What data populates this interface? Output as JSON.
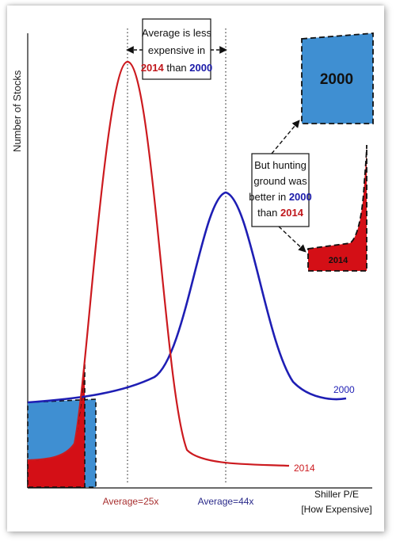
{
  "colors": {
    "series_2014": "#cc1a1f",
    "series_2000": "#1e1eb4",
    "fill_2014": "#d40f16",
    "fill_2000": "#3f8fd2",
    "avg_2014_text": "#a83030",
    "avg_2000_text": "#2a2a8a"
  },
  "chart_data": {
    "type": "line",
    "title": "",
    "ylabel": "Number of Stocks",
    "xlabel_line1": "Shiller P/E",
    "xlabel_line2": "[How Expensive]",
    "series": [
      {
        "name": "2014",
        "description": "red distribution peaking near Average=25x"
      },
      {
        "name": "2000",
        "description": "blue distribution peaking near Average=44x"
      }
    ],
    "averages": [
      {
        "label": "Average=25x",
        "value": 25,
        "series": "2014"
      },
      {
        "label": "Average=44x",
        "value": 44,
        "series": "2000"
      }
    ],
    "annotations": {
      "top": {
        "line1": "Average is less",
        "line2": "expensive in",
        "year_a": "2014",
        "than": " than ",
        "year_b": "2000"
      },
      "right": {
        "line1": "But hunting",
        "line2": "ground was",
        "line3_prefix": "better in ",
        "line3_year": "2000",
        "line4_prefix": "than ",
        "line4_year": "2014"
      }
    },
    "zoom_labels": {
      "blue": "2000",
      "red": "2014"
    },
    "grid": false,
    "legend": "inline labels at right end of each curve"
  }
}
